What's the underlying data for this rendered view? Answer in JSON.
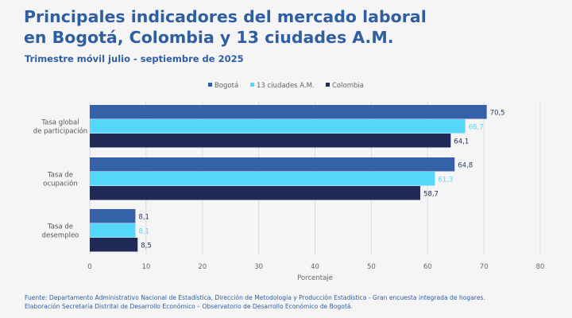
{
  "title_line1": "Principales indicadores del mercado laboral",
  "title_line2": "en Bogotá, Colombia y 13 ciudades A.M.",
  "subtitle": "Trimestre móvil julio - septiembre de 2025",
  "source_line1": "Fuente: Departamento Administrativo Nacional de Estadística, Dirección de Metodología y Producción Estadística - Gran encuesta integrada de hogares.",
  "source_line2": "Elaboración Secretaría Distrital de Desarrollo Económico – Observatorio de Desarrollo Económico de Bogotá.",
  "chart_data": {
    "type": "bar",
    "orientation": "horizontal",
    "categories": [
      [
        "Tasa global",
        "de participación"
      ],
      [
        "Tasa de",
        "ocupación"
      ],
      [
        "Tasa de",
        "desempleo"
      ]
    ],
    "series": [
      {
        "name": "Bogotá",
        "color": "#3461a8",
        "values": [
          70.5,
          64.8,
          8.1
        ],
        "labels": [
          "70,5",
          "64,8",
          "8,1"
        ],
        "label_color": "#2a3d66"
      },
      {
        "name": "13 ciudades A.M.",
        "color": "#55d6fb",
        "values": [
          66.7,
          61.3,
          8.1
        ],
        "labels": [
          "66,7",
          "61,3",
          "8,1"
        ],
        "label_color": "#55d6fb"
      },
      {
        "name": "Colombia",
        "color": "#1f2a56",
        "values": [
          64.1,
          58.7,
          8.5
        ],
        "labels": [
          "64,1",
          "58,7",
          "8,5"
        ],
        "label_color": "#1f2a56"
      }
    ],
    "xlabel": "Porcentaje",
    "ylabel": "",
    "xlim": [
      0,
      80
    ],
    "xticks": [
      0,
      10,
      20,
      30,
      40,
      50,
      60,
      70,
      80
    ],
    "grid": true,
    "legend": "top"
  }
}
